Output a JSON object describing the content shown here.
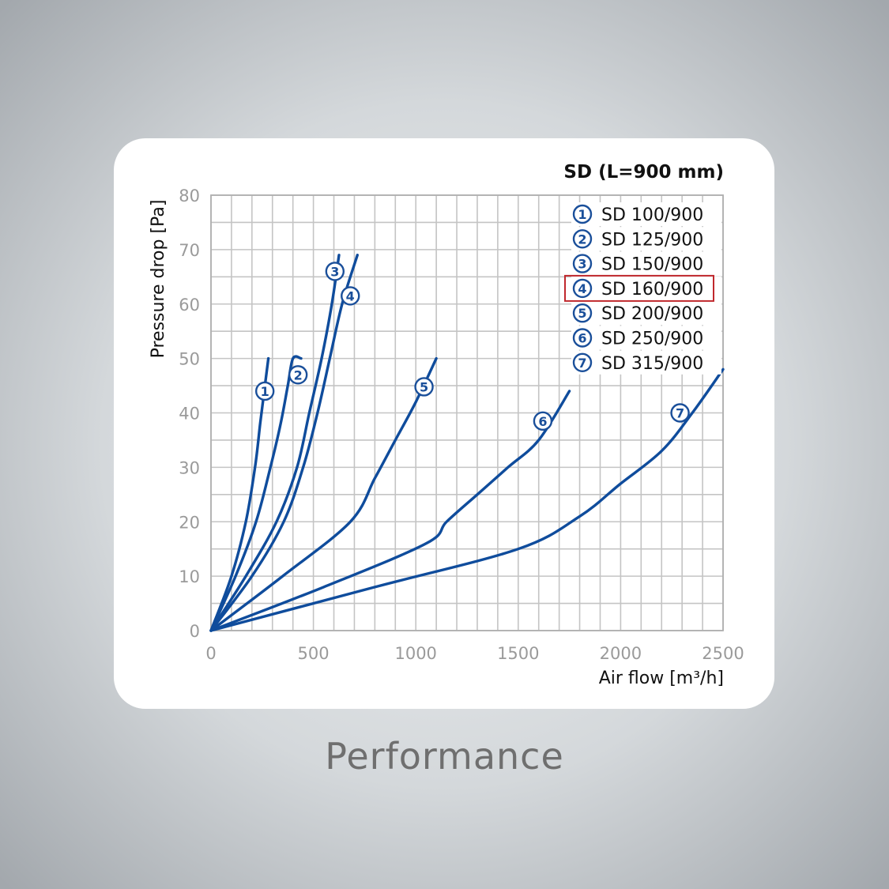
{
  "caption": "Performance",
  "colors": {
    "series": "#0f4c9c",
    "marker": "#1a4f9a",
    "grid": "#c4c4c4",
    "highlight_box": "#c0282d",
    "card": "#ffffff"
  },
  "chart_data": {
    "type": "line",
    "title": "SD (L=900 mm)",
    "xlabel": "Air flow [m³/h]",
    "ylabel": "Pressure drop [Pa]",
    "xlim": [
      0,
      2500
    ],
    "ylim": [
      0,
      80
    ],
    "x_ticks": [
      0,
      500,
      1000,
      1500,
      2000,
      2500
    ],
    "y_ticks": [
      0,
      10,
      20,
      30,
      40,
      50,
      60,
      70,
      80
    ],
    "grid": true,
    "legend_position": "top-right",
    "highlighted_series": 3,
    "series": [
      {
        "name": "SD 100/900",
        "marker": "1",
        "x": [
          0,
          100,
          170,
          215,
          240,
          260,
          280
        ],
        "y": [
          0,
          10,
          20,
          30,
          38,
          44,
          50
        ],
        "marker_at": [
          263,
          44
        ]
      },
      {
        "name": "SD 125/900",
        "marker": "2",
        "x": [
          0,
          120,
          220,
          290,
          340,
          375,
          400,
          440
        ],
        "y": [
          0,
          10,
          20,
          30,
          38,
          45,
          50,
          50
        ],
        "marker_at": [
          425,
          47
        ]
      },
      {
        "name": "SD 150/900",
        "marker": "3",
        "x": [
          0,
          170,
          320,
          420,
          480,
          540,
          590,
          625
        ],
        "y": [
          0,
          10,
          20,
          30,
          40,
          50,
          60,
          69
        ],
        "marker_at": [
          605,
          66
        ]
      },
      {
        "name": "SD 160/900",
        "marker": "4",
        "x": [
          0,
          200,
          355,
          450,
          520,
          580,
          640,
          715
        ],
        "y": [
          0,
          10,
          20,
          30,
          40,
          50,
          60,
          69
        ],
        "marker_at": [
          680,
          61.5
        ]
      },
      {
        "name": "SD 200/900",
        "marker": "5",
        "x": [
          0,
          350,
          680,
          800,
          900,
          1000,
          1100
        ],
        "y": [
          0,
          10,
          20,
          28,
          35,
          42,
          50
        ],
        "marker_at": [
          1040,
          44.8
        ]
      },
      {
        "name": "SD 250/900",
        "marker": "6",
        "x": [
          0,
          550,
          1050,
          1150,
          1300,
          1450,
          1600,
          1750
        ],
        "y": [
          0,
          8,
          16,
          20,
          25,
          30,
          35,
          44
        ],
        "marker_at": [
          1620,
          38.5
        ]
      },
      {
        "name": "SD 315/900",
        "marker": "7",
        "x": [
          0,
          800,
          1500,
          1800,
          2000,
          2200,
          2350,
          2500
        ],
        "y": [
          0,
          8,
          15,
          21,
          27,
          33,
          40,
          48
        ],
        "marker_at": [
          2290,
          40
        ]
      }
    ]
  }
}
